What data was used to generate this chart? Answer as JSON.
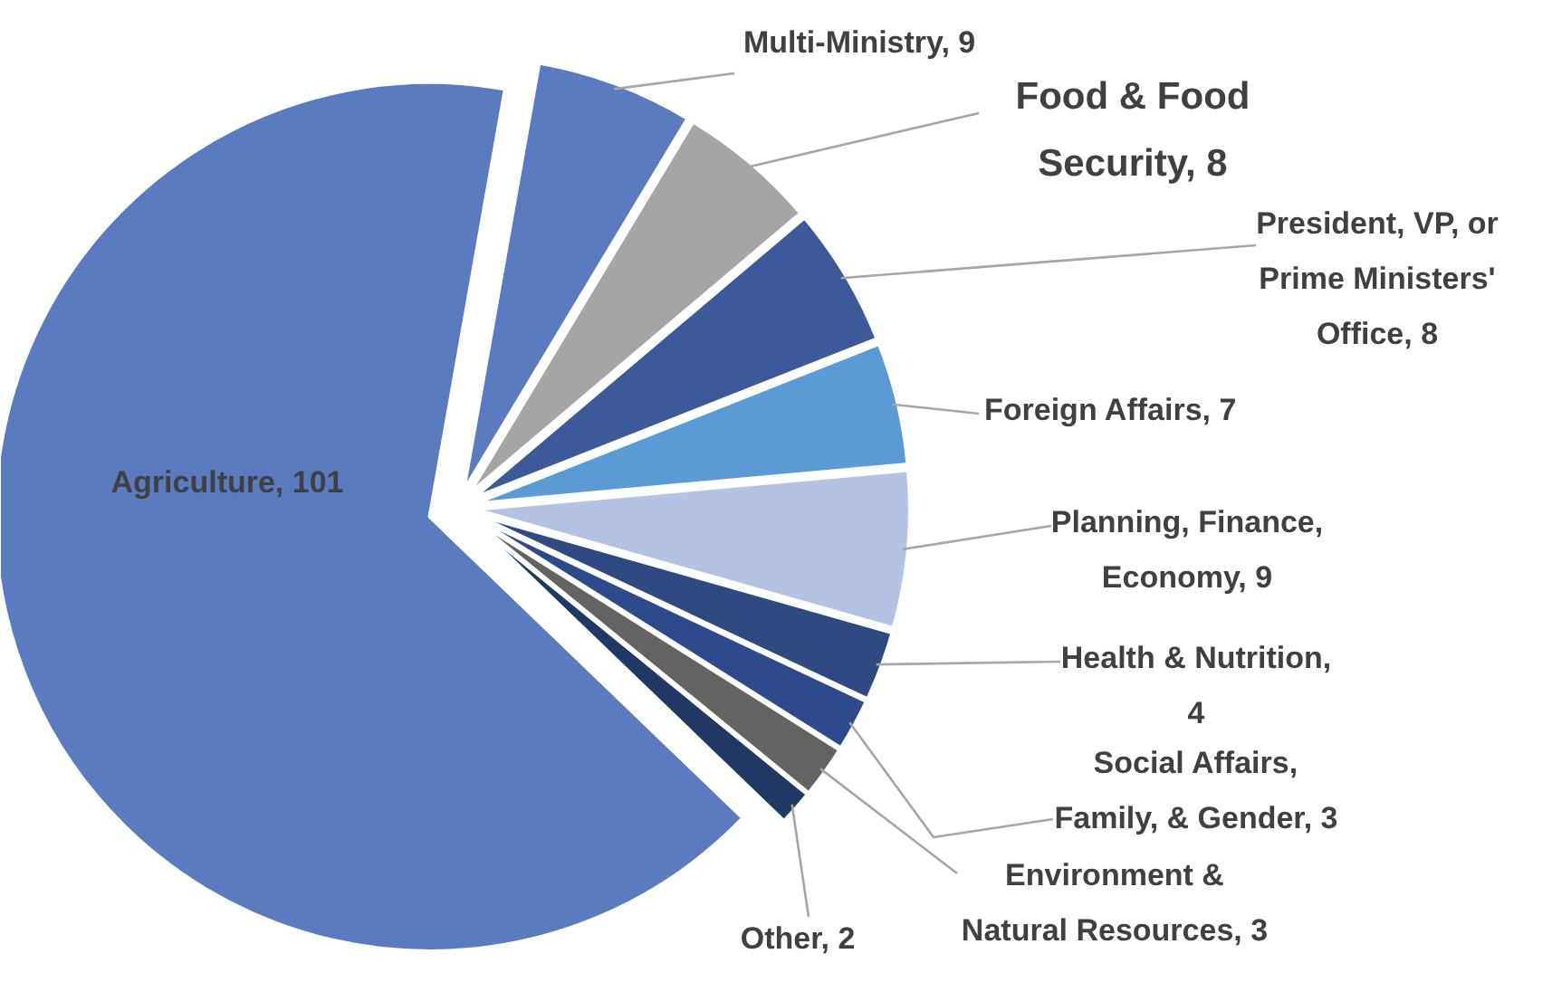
{
  "chart_data": {
    "type": "pie",
    "categories": [
      "Multi-Ministry, 9",
      "Food & Food Security, 8",
      "President, VP, or Prime Ministers' Office, 8",
      "Foreign Affairs, 7",
      "Planning, Finance, Economy, 9",
      "Health & Nutrition, 4",
      "Social Affairs, Family, & Gender, 3",
      "Environment & Natural Resources, 3",
      "Other, 2",
      "Agriculture, 101"
    ],
    "values": [
      9,
      8,
      8,
      7,
      9,
      4,
      3,
      3,
      2,
      101
    ],
    "colors": [
      "#5b7bc0",
      "#a5a5a5",
      "#3c5a9a",
      "#5b9bd5",
      "#b4c3e3",
      "#2e4a80",
      "#2d4a8c",
      "#636363",
      "#203864",
      "#5b7bc0"
    ]
  }
}
